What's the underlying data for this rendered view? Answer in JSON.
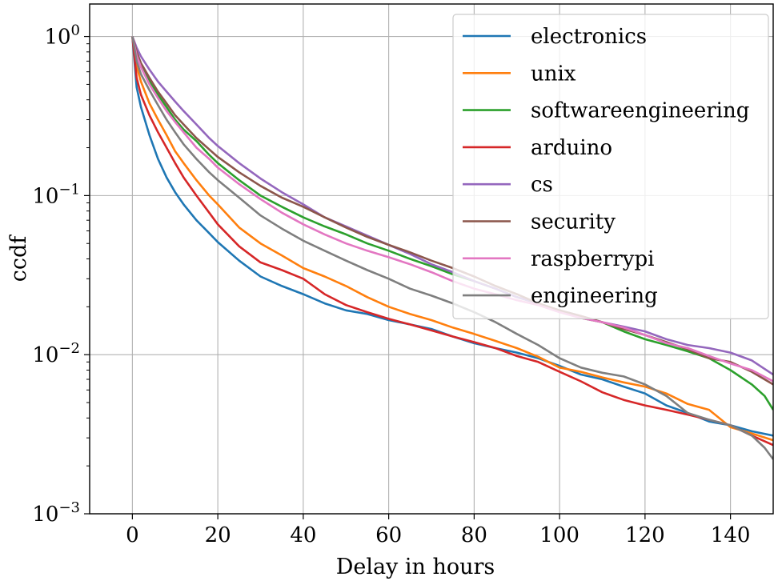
{
  "chart_data": {
    "type": "line",
    "xlabel": "Delay in hours",
    "ylabel": "ccdf",
    "xlim": [
      -10,
      150
    ],
    "ylim": [
      0.001,
      1.6
    ],
    "yscale": "log",
    "grid": true,
    "legend_position": "top-right",
    "x_ticks": [
      0,
      20,
      40,
      60,
      80,
      100,
      120,
      140
    ],
    "y_ticks": [
      {
        "value": 0.001,
        "base": "10",
        "exp": "−3"
      },
      {
        "value": 0.01,
        "base": "10",
        "exp": "−2"
      },
      {
        "value": 0.1,
        "base": "10",
        "exp": "−1"
      },
      {
        "value": 1,
        "base": "10",
        "exp": "0"
      }
    ],
    "series": [
      {
        "name": "electronics",
        "color": "#1f77b4",
        "points": [
          [
            0,
            1.0
          ],
          [
            1,
            0.48
          ],
          [
            2,
            0.36
          ],
          [
            4,
            0.24
          ],
          [
            6,
            0.17
          ],
          [
            8,
            0.13
          ],
          [
            10,
            0.105
          ],
          [
            12,
            0.088
          ],
          [
            15,
            0.07
          ],
          [
            18,
            0.058
          ],
          [
            20,
            0.051
          ],
          [
            25,
            0.039
          ],
          [
            30,
            0.031
          ],
          [
            35,
            0.027
          ],
          [
            40,
            0.024
          ],
          [
            45,
            0.021
          ],
          [
            50,
            0.019
          ],
          [
            55,
            0.018
          ],
          [
            60,
            0.0165
          ],
          [
            65,
            0.0155
          ],
          [
            70,
            0.0145
          ],
          [
            75,
            0.013
          ],
          [
            80,
            0.0118
          ],
          [
            85,
            0.011
          ],
          [
            90,
            0.0103
          ],
          [
            95,
            0.0095
          ],
          [
            100,
            0.0085
          ],
          [
            105,
            0.0075
          ],
          [
            110,
            0.007
          ],
          [
            115,
            0.0063
          ],
          [
            120,
            0.0057
          ],
          [
            125,
            0.0048
          ],
          [
            130,
            0.0043
          ],
          [
            135,
            0.0038
          ],
          [
            140,
            0.0036
          ],
          [
            145,
            0.0033
          ],
          [
            150,
            0.0031
          ]
        ]
      },
      {
        "name": "unix",
        "color": "#ff7f0e",
        "points": [
          [
            0,
            1.0
          ],
          [
            1,
            0.65
          ],
          [
            2,
            0.52
          ],
          [
            4,
            0.38
          ],
          [
            6,
            0.3
          ],
          [
            8,
            0.24
          ],
          [
            10,
            0.19
          ],
          [
            12,
            0.16
          ],
          [
            15,
            0.125
          ],
          [
            18,
            0.1
          ],
          [
            20,
            0.088
          ],
          [
            25,
            0.063
          ],
          [
            30,
            0.05
          ],
          [
            35,
            0.042
          ],
          [
            40,
            0.035
          ],
          [
            45,
            0.031
          ],
          [
            50,
            0.027
          ],
          [
            55,
            0.023
          ],
          [
            60,
            0.02
          ],
          [
            65,
            0.018
          ],
          [
            70,
            0.0165
          ],
          [
            75,
            0.0148
          ],
          [
            80,
            0.0135
          ],
          [
            85,
            0.0122
          ],
          [
            90,
            0.011
          ],
          [
            95,
            0.0097
          ],
          [
            100,
            0.0083
          ],
          [
            105,
            0.0078
          ],
          [
            110,
            0.0072
          ],
          [
            115,
            0.0067
          ],
          [
            120,
            0.0063
          ],
          [
            125,
            0.0057
          ],
          [
            130,
            0.0049
          ],
          [
            135,
            0.0045
          ],
          [
            140,
            0.0035
          ],
          [
            145,
            0.0032
          ],
          [
            150,
            0.0029
          ]
        ]
      },
      {
        "name": "softwareengineering",
        "color": "#2ca02c",
        "points": [
          [
            0,
            1.0
          ],
          [
            1,
            0.78
          ],
          [
            2,
            0.66
          ],
          [
            4,
            0.53
          ],
          [
            6,
            0.43
          ],
          [
            8,
            0.36
          ],
          [
            10,
            0.3
          ],
          [
            12,
            0.26
          ],
          [
            15,
            0.22
          ],
          [
            18,
            0.18
          ],
          [
            20,
            0.16
          ],
          [
            25,
            0.125
          ],
          [
            30,
            0.1
          ],
          [
            35,
            0.085
          ],
          [
            40,
            0.073
          ],
          [
            45,
            0.064
          ],
          [
            50,
            0.057
          ],
          [
            55,
            0.05
          ],
          [
            60,
            0.045
          ],
          [
            65,
            0.04
          ],
          [
            70,
            0.036
          ],
          [
            75,
            0.032
          ],
          [
            80,
            0.029
          ],
          [
            85,
            0.026
          ],
          [
            90,
            0.023
          ],
          [
            95,
            0.021
          ],
          [
            100,
            0.019
          ],
          [
            105,
            0.017
          ],
          [
            110,
            0.016
          ],
          [
            115,
            0.014
          ],
          [
            120,
            0.0125
          ],
          [
            125,
            0.0115
          ],
          [
            130,
            0.0105
          ],
          [
            135,
            0.0095
          ],
          [
            140,
            0.008
          ],
          [
            145,
            0.0065
          ],
          [
            148,
            0.0055
          ],
          [
            150,
            0.0045
          ]
        ]
      },
      {
        "name": "arduino",
        "color": "#d62728",
        "points": [
          [
            0,
            1.0
          ],
          [
            1,
            0.55
          ],
          [
            2,
            0.43
          ],
          [
            4,
            0.32
          ],
          [
            6,
            0.25
          ],
          [
            8,
            0.2
          ],
          [
            10,
            0.16
          ],
          [
            12,
            0.13
          ],
          [
            15,
            0.1
          ],
          [
            18,
            0.078
          ],
          [
            20,
            0.066
          ],
          [
            25,
            0.048
          ],
          [
            30,
            0.038
          ],
          [
            35,
            0.034
          ],
          [
            40,
            0.03
          ],
          [
            45,
            0.024
          ],
          [
            50,
            0.0205
          ],
          [
            55,
            0.0185
          ],
          [
            60,
            0.0168
          ],
          [
            65,
            0.0155
          ],
          [
            70,
            0.0142
          ],
          [
            75,
            0.013
          ],
          [
            80,
            0.012
          ],
          [
            85,
            0.011
          ],
          [
            90,
            0.0098
          ],
          [
            95,
            0.009
          ],
          [
            100,
            0.0078
          ],
          [
            105,
            0.0068
          ],
          [
            110,
            0.0058
          ],
          [
            115,
            0.0052
          ],
          [
            120,
            0.0048
          ],
          [
            125,
            0.0045
          ],
          [
            130,
            0.0042
          ],
          [
            135,
            0.0039
          ],
          [
            140,
            0.0036
          ],
          [
            145,
            0.0031
          ],
          [
            150,
            0.0027
          ]
        ]
      },
      {
        "name": "cs",
        "color": "#9467bd",
        "points": [
          [
            0,
            1.0
          ],
          [
            1,
            0.85
          ],
          [
            2,
            0.75
          ],
          [
            4,
            0.62
          ],
          [
            6,
            0.52
          ],
          [
            8,
            0.45
          ],
          [
            10,
            0.39
          ],
          [
            12,
            0.34
          ],
          [
            15,
            0.28
          ],
          [
            18,
            0.23
          ],
          [
            20,
            0.205
          ],
          [
            25,
            0.16
          ],
          [
            30,
            0.128
          ],
          [
            35,
            0.105
          ],
          [
            40,
            0.088
          ],
          [
            45,
            0.073
          ],
          [
            50,
            0.064
          ],
          [
            55,
            0.056
          ],
          [
            60,
            0.049
          ],
          [
            65,
            0.043
          ],
          [
            70,
            0.037
          ],
          [
            75,
            0.033
          ],
          [
            80,
            0.029
          ],
          [
            85,
            0.026
          ],
          [
            90,
            0.023
          ],
          [
            95,
            0.021
          ],
          [
            100,
            0.019
          ],
          [
            105,
            0.0175
          ],
          [
            110,
            0.016
          ],
          [
            115,
            0.015
          ],
          [
            120,
            0.014
          ],
          [
            125,
            0.0125
          ],
          [
            130,
            0.0115
          ],
          [
            135,
            0.011
          ],
          [
            140,
            0.0103
          ],
          [
            145,
            0.0092
          ],
          [
            150,
            0.0075
          ]
        ]
      },
      {
        "name": "security",
        "color": "#8c564b",
        "points": [
          [
            0,
            1.0
          ],
          [
            1,
            0.8
          ],
          [
            2,
            0.68
          ],
          [
            4,
            0.55
          ],
          [
            6,
            0.45
          ],
          [
            8,
            0.38
          ],
          [
            10,
            0.32
          ],
          [
            12,
            0.28
          ],
          [
            15,
            0.23
          ],
          [
            18,
            0.195
          ],
          [
            20,
            0.175
          ],
          [
            25,
            0.14
          ],
          [
            30,
            0.115
          ],
          [
            35,
            0.097
          ],
          [
            40,
            0.085
          ],
          [
            45,
            0.073
          ],
          [
            50,
            0.063
          ],
          [
            55,
            0.055
          ],
          [
            60,
            0.049
          ],
          [
            65,
            0.044
          ],
          [
            70,
            0.039
          ],
          [
            75,
            0.035
          ],
          [
            80,
            0.031
          ],
          [
            85,
            0.027
          ],
          [
            90,
            0.024
          ],
          [
            95,
            0.021
          ],
          [
            100,
            0.019
          ],
          [
            105,
            0.0175
          ],
          [
            110,
            0.016
          ],
          [
            115,
            0.0145
          ],
          [
            120,
            0.0133
          ],
          [
            125,
            0.012
          ],
          [
            130,
            0.0108
          ],
          [
            135,
            0.0095
          ],
          [
            140,
            0.009
          ],
          [
            145,
            0.0078
          ],
          [
            150,
            0.0065
          ]
        ]
      },
      {
        "name": "raspberrypi",
        "color": "#e377c2",
        "points": [
          [
            0,
            1.0
          ],
          [
            1,
            0.76
          ],
          [
            2,
            0.64
          ],
          [
            4,
            0.5
          ],
          [
            6,
            0.41
          ],
          [
            8,
            0.34
          ],
          [
            10,
            0.29
          ],
          [
            12,
            0.25
          ],
          [
            15,
            0.2
          ],
          [
            18,
            0.17
          ],
          [
            20,
            0.15
          ],
          [
            25,
            0.118
          ],
          [
            30,
            0.095
          ],
          [
            35,
            0.078
          ],
          [
            40,
            0.066
          ],
          [
            45,
            0.057
          ],
          [
            50,
            0.05
          ],
          [
            55,
            0.045
          ],
          [
            60,
            0.041
          ],
          [
            65,
            0.037
          ],
          [
            70,
            0.033
          ],
          [
            75,
            0.029
          ],
          [
            80,
            0.026
          ],
          [
            85,
            0.024
          ],
          [
            90,
            0.022
          ],
          [
            95,
            0.0205
          ],
          [
            100,
            0.0185
          ],
          [
            105,
            0.017
          ],
          [
            110,
            0.016
          ],
          [
            115,
            0.0148
          ],
          [
            120,
            0.0133
          ],
          [
            125,
            0.0118
          ],
          [
            130,
            0.011
          ],
          [
            135,
            0.0098
          ],
          [
            140,
            0.0088
          ],
          [
            145,
            0.008
          ],
          [
            150,
            0.0068
          ]
        ]
      },
      {
        "name": "engineering",
        "color": "#7f7f7f",
        "points": [
          [
            0,
            1.0
          ],
          [
            1,
            0.7
          ],
          [
            2,
            0.58
          ],
          [
            4,
            0.46
          ],
          [
            6,
            0.37
          ],
          [
            8,
            0.3
          ],
          [
            10,
            0.25
          ],
          [
            12,
            0.21
          ],
          [
            15,
            0.17
          ],
          [
            18,
            0.14
          ],
          [
            20,
            0.125
          ],
          [
            25,
            0.097
          ],
          [
            30,
            0.075
          ],
          [
            35,
            0.062
          ],
          [
            40,
            0.052
          ],
          [
            45,
            0.045
          ],
          [
            50,
            0.039
          ],
          [
            55,
            0.034
          ],
          [
            60,
            0.03
          ],
          [
            65,
            0.026
          ],
          [
            70,
            0.0235
          ],
          [
            75,
            0.021
          ],
          [
            80,
            0.0185
          ],
          [
            85,
            0.016
          ],
          [
            90,
            0.0135
          ],
          [
            95,
            0.0115
          ],
          [
            100,
            0.0095
          ],
          [
            105,
            0.0083
          ],
          [
            110,
            0.0077
          ],
          [
            115,
            0.0073
          ],
          [
            120,
            0.0065
          ],
          [
            125,
            0.0055
          ],
          [
            130,
            0.0043
          ],
          [
            135,
            0.0039
          ],
          [
            140,
            0.0036
          ],
          [
            145,
            0.0031
          ],
          [
            148,
            0.0026
          ],
          [
            150,
            0.0022
          ]
        ]
      }
    ]
  }
}
